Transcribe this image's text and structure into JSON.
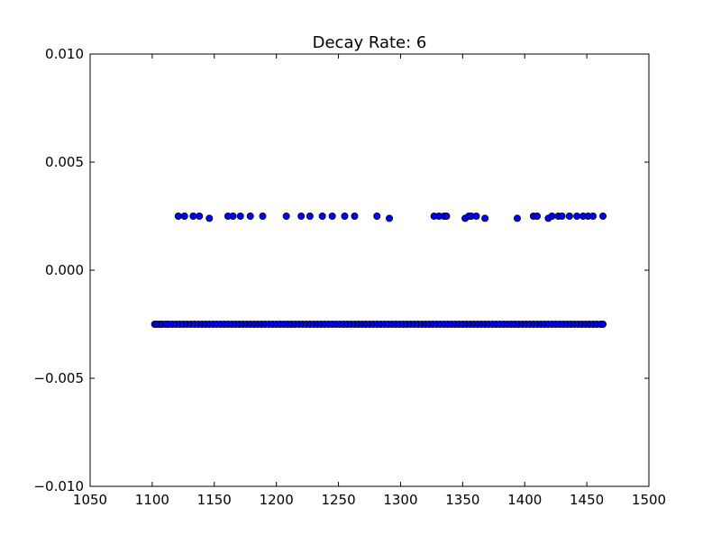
{
  "chart_data": {
    "type": "scatter",
    "title": "Decay Rate: 6",
    "xlabel": "",
    "ylabel": "",
    "xlim": [
      1050,
      1500
    ],
    "ylim": [
      -0.01,
      0.01
    ],
    "xticks": [
      1050,
      1100,
      1150,
      1200,
      1250,
      1300,
      1350,
      1400,
      1450,
      1500
    ],
    "xtick_labels": [
      "1050",
      "1100",
      "1150",
      "1200",
      "1250",
      "1300",
      "1350",
      "1400",
      "1450",
      "1500"
    ],
    "yticks": [
      0.01,
      0.005,
      0.0,
      -0.005,
      -0.01
    ],
    "ytick_labels": [
      "0.010",
      "0.005",
      "0.000",
      "−0.005",
      "−0.010"
    ],
    "grid": false,
    "marker_color": "#0000ff",
    "marker_edge_color": "#000000",
    "series": [
      {
        "points": [
          [
            1121,
            0.0025
          ],
          [
            1126,
            0.0025
          ],
          [
            1133,
            0.0025
          ],
          [
            1138,
            0.0025
          ],
          [
            1146,
            0.0024
          ],
          [
            1161,
            0.0025
          ],
          [
            1165,
            0.0025
          ],
          [
            1171,
            0.0025
          ],
          [
            1179,
            0.0025
          ],
          [
            1189,
            0.0025
          ],
          [
            1208,
            0.0025
          ],
          [
            1220,
            0.0025
          ],
          [
            1227,
            0.0025
          ],
          [
            1237,
            0.0025
          ],
          [
            1245,
            0.0025
          ],
          [
            1255,
            0.0025
          ],
          [
            1263,
            0.0025
          ],
          [
            1281,
            0.0025
          ],
          [
            1291,
            0.0024
          ],
          [
            1327,
            0.0025
          ],
          [
            1331,
            0.0025
          ],
          [
            1335,
            0.0025
          ],
          [
            1337,
            0.0025
          ],
          [
            1352,
            0.0024
          ],
          [
            1355,
            0.0025
          ],
          [
            1357,
            0.0025
          ],
          [
            1361,
            0.0025
          ],
          [
            1368,
            0.0024
          ],
          [
            1394,
            0.0024
          ],
          [
            1407,
            0.0025
          ],
          [
            1410,
            0.0025
          ],
          [
            1419,
            0.0024
          ],
          [
            1422,
            0.0025
          ],
          [
            1427,
            0.0025
          ],
          [
            1430,
            0.0025
          ],
          [
            1436,
            0.0025
          ],
          [
            1442,
            0.0025
          ],
          [
            1447,
            0.0025
          ],
          [
            1451,
            0.0025
          ],
          [
            1455,
            0.0025
          ],
          [
            1463,
            0.0025
          ],
          [
            1102,
            -0.0025
          ],
          [
            1104,
            -0.0025
          ],
          [
            1106,
            -0.0025
          ],
          [
            1108,
            -0.0025
          ],
          [
            1111,
            -0.0025
          ],
          [
            1113,
            -0.0025
          ],
          [
            1116,
            -0.0025
          ],
          [
            1119,
            -0.0025
          ],
          [
            1122,
            -0.0025
          ],
          [
            1125,
            -0.0025
          ],
          [
            1128,
            -0.0025
          ],
          [
            1131,
            -0.0025
          ],
          [
            1134,
            -0.0025
          ],
          [
            1137,
            -0.0025
          ],
          [
            1140,
            -0.0025
          ],
          [
            1143,
            -0.0025
          ],
          [
            1146,
            -0.0025
          ],
          [
            1149,
            -0.0025
          ],
          [
            1152,
            -0.0025
          ],
          [
            1155,
            -0.0025
          ],
          [
            1158,
            -0.0025
          ],
          [
            1161,
            -0.0025
          ],
          [
            1164,
            -0.0025
          ],
          [
            1167,
            -0.0025
          ],
          [
            1170,
            -0.0025
          ],
          [
            1173,
            -0.0025
          ],
          [
            1176,
            -0.0025
          ],
          [
            1179,
            -0.0025
          ],
          [
            1182,
            -0.0025
          ],
          [
            1185,
            -0.0025
          ],
          [
            1188,
            -0.0025
          ],
          [
            1191,
            -0.0025
          ],
          [
            1194,
            -0.0025
          ],
          [
            1197,
            -0.0025
          ],
          [
            1200,
            -0.0025
          ],
          [
            1203,
            -0.0025
          ],
          [
            1206,
            -0.0025
          ],
          [
            1209,
            -0.0025
          ],
          [
            1212,
            -0.0025
          ],
          [
            1215,
            -0.0025
          ],
          [
            1218,
            -0.0025
          ],
          [
            1221,
            -0.0025
          ],
          [
            1224,
            -0.0025
          ],
          [
            1227,
            -0.0025
          ],
          [
            1230,
            -0.0025
          ],
          [
            1233,
            -0.0025
          ],
          [
            1236,
            -0.0025
          ],
          [
            1239,
            -0.0025
          ],
          [
            1242,
            -0.0025
          ],
          [
            1245,
            -0.0025
          ],
          [
            1248,
            -0.0025
          ],
          [
            1251,
            -0.0025
          ],
          [
            1254,
            -0.0025
          ],
          [
            1257,
            -0.0025
          ],
          [
            1260,
            -0.0025
          ],
          [
            1263,
            -0.0025
          ],
          [
            1266,
            -0.0025
          ],
          [
            1269,
            -0.0025
          ],
          [
            1272,
            -0.0025
          ],
          [
            1275,
            -0.0025
          ],
          [
            1278,
            -0.0025
          ],
          [
            1281,
            -0.0025
          ],
          [
            1284,
            -0.0025
          ],
          [
            1287,
            -0.0025
          ],
          [
            1290,
            -0.0025
          ],
          [
            1293,
            -0.0025
          ],
          [
            1296,
            -0.0025
          ],
          [
            1299,
            -0.0025
          ],
          [
            1302,
            -0.0025
          ],
          [
            1305,
            -0.0025
          ],
          [
            1308,
            -0.0025
          ],
          [
            1311,
            -0.0025
          ],
          [
            1314,
            -0.0025
          ],
          [
            1317,
            -0.0025
          ],
          [
            1320,
            -0.0025
          ],
          [
            1323,
            -0.0025
          ],
          [
            1326,
            -0.0025
          ],
          [
            1329,
            -0.0025
          ],
          [
            1332,
            -0.0025
          ],
          [
            1335,
            -0.0025
          ],
          [
            1338,
            -0.0025
          ],
          [
            1341,
            -0.0025
          ],
          [
            1344,
            -0.0025
          ],
          [
            1347,
            -0.0025
          ],
          [
            1350,
            -0.0025
          ],
          [
            1353,
            -0.0025
          ],
          [
            1356,
            -0.0025
          ],
          [
            1359,
            -0.0025
          ],
          [
            1362,
            -0.0025
          ],
          [
            1365,
            -0.0025
          ],
          [
            1368,
            -0.0025
          ],
          [
            1371,
            -0.0025
          ],
          [
            1374,
            -0.0025
          ],
          [
            1377,
            -0.0025
          ],
          [
            1380,
            -0.0025
          ],
          [
            1383,
            -0.0025
          ],
          [
            1386,
            -0.0025
          ],
          [
            1389,
            -0.0025
          ],
          [
            1392,
            -0.0025
          ],
          [
            1395,
            -0.0025
          ],
          [
            1398,
            -0.0025
          ],
          [
            1401,
            -0.0025
          ],
          [
            1404,
            -0.0025
          ],
          [
            1407,
            -0.0025
          ],
          [
            1410,
            -0.0025
          ],
          [
            1413,
            -0.0025
          ],
          [
            1416,
            -0.0025
          ],
          [
            1419,
            -0.0025
          ],
          [
            1422,
            -0.0025
          ],
          [
            1425,
            -0.0025
          ],
          [
            1428,
            -0.0025
          ],
          [
            1431,
            -0.0025
          ],
          [
            1434,
            -0.0025
          ],
          [
            1437,
            -0.0025
          ],
          [
            1440,
            -0.0025
          ],
          [
            1443,
            -0.0025
          ],
          [
            1446,
            -0.0025
          ],
          [
            1449,
            -0.0025
          ],
          [
            1452,
            -0.0025
          ],
          [
            1455,
            -0.0025
          ],
          [
            1458,
            -0.0025
          ],
          [
            1461,
            -0.0025
          ],
          [
            1463,
            -0.0025
          ]
        ]
      }
    ]
  }
}
